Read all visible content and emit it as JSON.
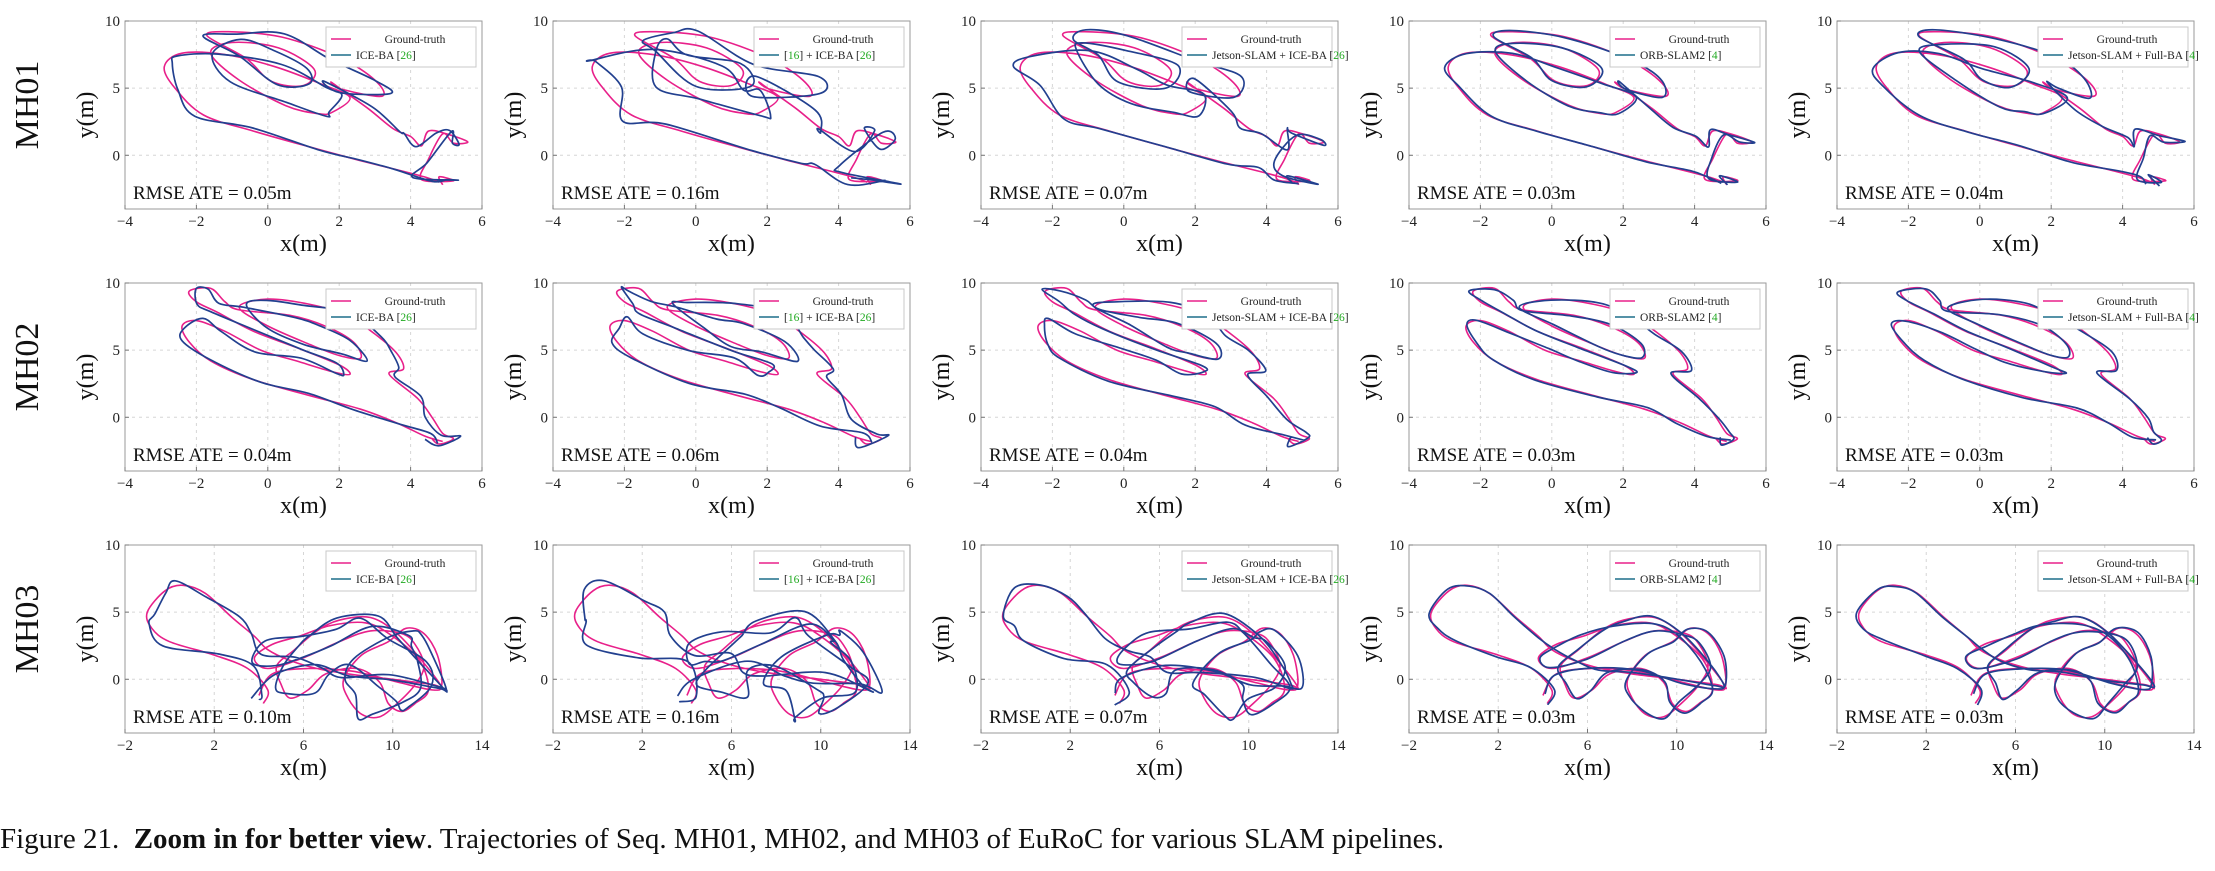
{
  "caption": {
    "prefix": "Figure 21.",
    "bold": "Zoom in for better view",
    "rest": ". Trajectories of Seq. MH01, MH02, and MH03 of EuRoC for various SLAM pipelines."
  },
  "colors": {
    "ground_truth": "#e8208a",
    "estimate": "#1d6f8a",
    "estimate_dark": "#22408f",
    "citation": "#22aa22"
  },
  "chart_data": [
    {
      "seq": "MH01",
      "method": "ICE-BA [26]",
      "legend": [
        "Ground-truth",
        "ICE-BA [26]"
      ],
      "rmse_text": "RMSE ATE = 0.05m",
      "type": "line",
      "xlabel": "x(m)",
      "ylabel": "y(m)",
      "xlim": [
        -4,
        6
      ],
      "ylim": [
        -4,
        10
      ],
      "xticks": [
        -4,
        -2,
        0,
        2,
        4,
        6
      ],
      "yticks": [
        0,
        5,
        10
      ],
      "grid": true,
      "legend_position": "top-right",
      "deviation": 0.25
    },
    {
      "seq": "MH01",
      "method": "[16] + ICE-BA [26]",
      "legend": [
        "Ground-truth",
        "[16] + ICE-BA [26]"
      ],
      "rmse_text": "RMSE ATE = 0.16m",
      "type": "line",
      "xlabel": "x(m)",
      "ylabel": "y(m)",
      "xlim": [
        -4,
        6
      ],
      "ylim": [
        -4,
        10
      ],
      "xticks": [
        -4,
        -2,
        0,
        2,
        4,
        6
      ],
      "yticks": [
        0,
        5,
        10
      ],
      "grid": true,
      "legend_position": "top-right",
      "deviation": 0.55
    },
    {
      "seq": "MH01",
      "method": "Jetson-SLAM + ICE-BA [26]",
      "legend": [
        "Ground-truth",
        "Jetson-SLAM  + ICE-BA [26]"
      ],
      "rmse_text": "RMSE ATE = 0.07m",
      "type": "line",
      "xlabel": "x(m)",
      "ylabel": "y(m)",
      "xlim": [
        -4,
        6
      ],
      "ylim": [
        -4,
        10
      ],
      "xticks": [
        -4,
        -2,
        0,
        2,
        4,
        6
      ],
      "yticks": [
        0,
        5,
        10
      ],
      "grid": true,
      "legend_position": "top-right",
      "deviation": 0.3
    },
    {
      "seq": "MH01",
      "method": "ORB-SLAM2 [4]",
      "legend": [
        "Ground-truth",
        "ORB-SLAM2 [4]"
      ],
      "rmse_text": "RMSE ATE = 0.03m",
      "type": "line",
      "xlabel": "x(m)",
      "ylabel": "y(m)",
      "xlim": [
        -4,
        6
      ],
      "ylim": [
        -4,
        10
      ],
      "xticks": [
        -4,
        -2,
        0,
        2,
        4,
        6
      ],
      "yticks": [
        0,
        5,
        10
      ],
      "grid": true,
      "legend_position": "top-right",
      "deviation": 0.1
    },
    {
      "seq": "MH01",
      "method": "Jetson-SLAM + Full-BA [4]",
      "legend": [
        "Ground-truth",
        "Jetson-SLAM  + Full-BA [4]"
      ],
      "rmse_text": "RMSE ATE = 0.04m",
      "type": "line",
      "xlabel": "x(m)",
      "ylabel": "y(m)",
      "xlim": [
        -4,
        6
      ],
      "ylim": [
        -4,
        10
      ],
      "xticks": [
        -4,
        -2,
        0,
        2,
        4,
        6
      ],
      "yticks": [
        0,
        5,
        10
      ],
      "grid": true,
      "legend_position": "top-right",
      "deviation": 0.15
    },
    {
      "seq": "MH02",
      "method": "ICE-BA [26]",
      "legend": [
        "Ground-truth",
        "ICE-BA [26]"
      ],
      "rmse_text": "RMSE ATE = 0.04m",
      "type": "line",
      "xlabel": "x(m)",
      "ylabel": "y(m)",
      "xlim": [
        -4,
        6
      ],
      "ylim": [
        -4,
        10
      ],
      "xticks": [
        -4,
        -2,
        0,
        2,
        4,
        6
      ],
      "yticks": [
        0,
        5,
        10
      ],
      "grid": true,
      "legend_position": "top-right",
      "deviation": 0.2
    },
    {
      "seq": "MH02",
      "method": "[16] + ICE-BA [26]",
      "legend": [
        "Ground-truth",
        "[16] + ICE-BA [26]"
      ],
      "rmse_text": "RMSE ATE = 0.06m",
      "type": "line",
      "xlabel": "x(m)",
      "ylabel": "y(m)",
      "xlim": [
        -4,
        6
      ],
      "ylim": [
        -4,
        10
      ],
      "xticks": [
        -4,
        -2,
        0,
        2,
        4,
        6
      ],
      "yticks": [
        0,
        5,
        10
      ],
      "grid": true,
      "legend_position": "top-right",
      "deviation": 0.28
    },
    {
      "seq": "MH02",
      "method": "Jetson-SLAM + ICE-BA [26]",
      "legend": [
        "Ground-truth",
        "Jetson-SLAM  + ICE-BA [26]"
      ],
      "rmse_text": "RMSE ATE = 0.04m",
      "type": "line",
      "xlabel": "x(m)",
      "ylabel": "y(m)",
      "xlim": [
        -4,
        6
      ],
      "ylim": [
        -4,
        10
      ],
      "xticks": [
        -4,
        -2,
        0,
        2,
        4,
        6
      ],
      "yticks": [
        0,
        5,
        10
      ],
      "grid": true,
      "legend_position": "top-right",
      "deviation": 0.2
    },
    {
      "seq": "MH02",
      "method": "ORB-SLAM2 [4]",
      "legend": [
        "Ground-truth",
        "ORB-SLAM2 [4]"
      ],
      "rmse_text": "RMSE ATE = 0.03m",
      "type": "line",
      "xlabel": "x(m)",
      "ylabel": "y(m)",
      "xlim": [
        -4,
        6
      ],
      "ylim": [
        -4,
        10
      ],
      "xticks": [
        -4,
        -2,
        0,
        2,
        4,
        6
      ],
      "yticks": [
        0,
        5,
        10
      ],
      "grid": true,
      "legend_position": "top-right",
      "deviation": 0.12
    },
    {
      "seq": "MH02",
      "method": "Jetson-SLAM + Full-BA [4]",
      "legend": [
        "Ground-truth",
        "Jetson-SLAM  + Full-BA [4]"
      ],
      "rmse_text": "RMSE ATE = 0.03m",
      "type": "line",
      "xlabel": "x(m)",
      "ylabel": "y(m)",
      "xlim": [
        -4,
        6
      ],
      "ylim": [
        -4,
        10
      ],
      "xticks": [
        -4,
        -2,
        0,
        2,
        4,
        6
      ],
      "yticks": [
        0,
        5,
        10
      ],
      "grid": true,
      "legend_position": "top-right",
      "deviation": 0.12
    },
    {
      "seq": "MH03",
      "method": "ICE-BA [26]",
      "legend": [
        "Ground-truth",
        "ICE-BA [26]"
      ],
      "rmse_text": "RMSE ATE = 0.10m",
      "type": "line",
      "xlabel": "x(m)",
      "ylabel": "y(m)",
      "xlim": [
        -2,
        14
      ],
      "ylim": [
        -4,
        10
      ],
      "xticks": [
        -2,
        2,
        6,
        10,
        14
      ],
      "yticks": [
        0,
        5,
        10
      ],
      "grid": true,
      "legend_position": "top-right",
      "deviation": 0.35
    },
    {
      "seq": "MH03",
      "method": "[16] + ICE-BA [26]",
      "legend": [
        "Ground-truth",
        "[16] + ICE-BA [26]"
      ],
      "rmse_text": "RMSE ATE = 0.16m",
      "type": "line",
      "xlabel": "x(m)",
      "ylabel": "y(m)",
      "xlim": [
        -2,
        14
      ],
      "ylim": [
        -4,
        10
      ],
      "xticks": [
        -2,
        2,
        6,
        10,
        14
      ],
      "yticks": [
        0,
        5,
        10
      ],
      "grid": true,
      "legend_position": "top-right",
      "deviation": 0.55
    },
    {
      "seq": "MH03",
      "method": "Jetson-SLAM + ICE-BA [26]",
      "legend": [
        "Ground-truth",
        "Jetson-SLAM  + ICE-BA [26]"
      ],
      "rmse_text": "RMSE ATE = 0.07m",
      "type": "line",
      "xlabel": "x(m)",
      "ylabel": "y(m)",
      "xlim": [
        -2,
        14
      ],
      "ylim": [
        -4,
        10
      ],
      "xticks": [
        -2,
        2,
        6,
        10,
        14
      ],
      "yticks": [
        0,
        5,
        10
      ],
      "grid": true,
      "legend_position": "top-right",
      "deviation": 0.3
    },
    {
      "seq": "MH03",
      "method": "ORB-SLAM2 [4]",
      "legend": [
        "Ground-truth",
        "ORB-SLAM2 [4]"
      ],
      "rmse_text": "RMSE ATE = 0.03m",
      "type": "line",
      "xlabel": "x(m)",
      "ylabel": "y(m)",
      "xlim": [
        -2,
        14
      ],
      "ylim": [
        -4,
        10
      ],
      "xticks": [
        -2,
        2,
        6,
        10,
        14
      ],
      "yticks": [
        0,
        5,
        10
      ],
      "grid": true,
      "legend_position": "top-right",
      "deviation": 0.12
    },
    {
      "seq": "MH03",
      "method": "Jetson-SLAM + Full-BA [4]",
      "legend": [
        "Ground-truth",
        "Jetson-SLAM  + Full-BA [4]"
      ],
      "rmse_text": "RMSE ATE = 0.03m",
      "type": "line",
      "xlabel": "x(m)",
      "ylabel": "y(m)",
      "xlim": [
        -2,
        14
      ],
      "ylim": [
        -4,
        10
      ],
      "xticks": [
        -2,
        2,
        6,
        10,
        14
      ],
      "yticks": [
        0,
        5,
        10
      ],
      "grid": true,
      "legend_position": "top-right",
      "deviation": 0.12
    }
  ],
  "ground_truth_paths": {
    "MH01": [
      [
        4.8,
        -2.0
      ],
      [
        4.5,
        -1.7
      ],
      [
        3.8,
        -1.2
      ],
      [
        2.6,
        -0.4
      ],
      [
        1.2,
        0.6
      ],
      [
        -0.4,
        1.8
      ],
      [
        -1.8,
        3.0
      ],
      [
        -2.6,
        5.0
      ],
      [
        -2.9,
        6.6
      ],
      [
        -2.4,
        7.6
      ],
      [
        -1.2,
        7.5
      ],
      [
        0.2,
        6.6
      ],
      [
        1.5,
        5.3
      ],
      [
        2.3,
        4.3
      ],
      [
        1.8,
        3.2
      ],
      [
        1.4,
        3.1
      ],
      [
        0.5,
        3.7
      ],
      [
        -0.8,
        5.6
      ],
      [
        -1.6,
        7.6
      ],
      [
        -1.0,
        8.4
      ],
      [
        0.3,
        8.0
      ],
      [
        1.3,
        6.4
      ],
      [
        1.0,
        5.2
      ],
      [
        0.1,
        5.5
      ],
      [
        -0.6,
        7.2
      ],
      [
        -1.7,
        8.9
      ],
      [
        -1.1,
        9.2
      ],
      [
        0.4,
        8.8
      ],
      [
        2.0,
        7.3
      ],
      [
        3.0,
        5.6
      ],
      [
        3.2,
        4.4
      ],
      [
        2.1,
        4.9
      ],
      [
        1.8,
        5.4
      ],
      [
        2.8,
        3.5
      ],
      [
        3.5,
        2.0
      ],
      [
        4.0,
        1.4
      ],
      [
        4.3,
        0.7
      ],
      [
        4.5,
        1.8
      ],
      [
        5.0,
        1.6
      ],
      [
        5.6,
        1.0
      ],
      [
        5.2,
        0.9
      ],
      [
        4.9,
        1.6
      ],
      [
        4.5,
        -0.3
      ],
      [
        4.3,
        -1.8
      ],
      [
        5.2,
        -1.9
      ],
      [
        4.8,
        -1.6
      ],
      [
        4.9,
        -2.2
      ]
    ],
    "MH02": [
      [
        4.9,
        -1.8
      ],
      [
        4.4,
        -1.4
      ],
      [
        3.6,
        -0.4
      ],
      [
        2.6,
        0.6
      ],
      [
        1.2,
        1.6
      ],
      [
        -0.4,
        2.8
      ],
      [
        -1.6,
        4.2
      ],
      [
        -2.2,
        5.6
      ],
      [
        -2.4,
        6.8
      ],
      [
        -2.0,
        7.2
      ],
      [
        -1.2,
        6.4
      ],
      [
        -0.2,
        5.0
      ],
      [
        0.8,
        4.2
      ],
      [
        1.8,
        3.4
      ],
      [
        2.3,
        3.2
      ],
      [
        2.0,
        3.9
      ],
      [
        0.8,
        5.2
      ],
      [
        -0.4,
        6.4
      ],
      [
        -1.4,
        7.8
      ],
      [
        -2.0,
        8.6
      ],
      [
        -2.2,
        9.4
      ],
      [
        -1.6,
        9.6
      ],
      [
        -1.2,
        8.6
      ],
      [
        -0.8,
        8.0
      ],
      [
        0.6,
        7.6
      ],
      [
        1.6,
        6.8
      ],
      [
        2.4,
        5.6
      ],
      [
        2.6,
        4.4
      ],
      [
        2.0,
        4.6
      ],
      [
        1.2,
        5.4
      ],
      [
        0.0,
        6.8
      ],
      [
        -0.8,
        8.2
      ],
      [
        0.0,
        8.8
      ],
      [
        1.2,
        8.4
      ],
      [
        2.2,
        7.6
      ],
      [
        3.0,
        6.2
      ],
      [
        3.6,
        4.8
      ],
      [
        3.8,
        3.6
      ],
      [
        3.4,
        3.2
      ],
      [
        4.2,
        1.4
      ],
      [
        4.6,
        0.0
      ],
      [
        4.9,
        -1.2
      ],
      [
        5.2,
        -1.6
      ],
      [
        4.8,
        -2.0
      ],
      [
        4.6,
        -1.6
      ]
    ],
    "MH03": [
      [
        4.2,
        -1.8
      ],
      [
        4.4,
        -0.8
      ],
      [
        3.5,
        0.8
      ],
      [
        2.0,
        1.8
      ],
      [
        0.0,
        2.8
      ],
      [
        -0.8,
        3.8
      ],
      [
        -1.0,
        5.0
      ],
      [
        -0.2,
        6.6
      ],
      [
        0.6,
        7.0
      ],
      [
        1.6,
        6.4
      ],
      [
        2.8,
        4.6
      ],
      [
        3.8,
        3.2
      ],
      [
        4.4,
        2.2
      ],
      [
        5.4,
        1.4
      ],
      [
        6.6,
        0.8
      ],
      [
        8.0,
        0.4
      ],
      [
        10.0,
        0.0
      ],
      [
        11.8,
        -0.4
      ],
      [
        12.2,
        -0.6
      ],
      [
        11.4,
        1.2
      ],
      [
        10.2,
        3.4
      ],
      [
        9.0,
        4.6
      ],
      [
        7.6,
        4.4
      ],
      [
        6.6,
        3.6
      ],
      [
        5.6,
        2.2
      ],
      [
        4.8,
        1.0
      ],
      [
        5.0,
        -0.4
      ],
      [
        5.4,
        -1.4
      ],
      [
        6.2,
        -0.8
      ],
      [
        7.0,
        0.4
      ],
      [
        8.4,
        0.8
      ],
      [
        9.4,
        -0.2
      ],
      [
        9.8,
        -1.8
      ],
      [
        10.4,
        -2.4
      ],
      [
        11.0,
        -1.8
      ],
      [
        11.6,
        -0.8
      ],
      [
        11.2,
        1.4
      ],
      [
        10.0,
        3.2
      ],
      [
        8.8,
        4.2
      ],
      [
        7.2,
        4.0
      ],
      [
        5.8,
        3.2
      ],
      [
        4.6,
        2.6
      ],
      [
        3.8,
        1.6
      ],
      [
        4.4,
        0.8
      ],
      [
        6.0,
        1.6
      ],
      [
        7.6,
        2.8
      ],
      [
        9.0,
        3.6
      ],
      [
        10.4,
        3.4
      ],
      [
        11.0,
        2.6
      ],
      [
        11.4,
        1.0
      ],
      [
        11.0,
        -0.4
      ],
      [
        10.2,
        -1.8
      ],
      [
        9.4,
        -2.8
      ],
      [
        8.6,
        -2.6
      ],
      [
        8.0,
        -1.4
      ],
      [
        7.8,
        0.0
      ],
      [
        8.6,
        1.8
      ],
      [
        9.8,
        2.8
      ],
      [
        10.6,
        3.8
      ],
      [
        11.4,
        3.4
      ],
      [
        12.0,
        1.8
      ],
      [
        12.2,
        -0.4
      ],
      [
        11.8,
        -0.8
      ],
      [
        10.2,
        -0.2
      ],
      [
        8.2,
        0.6
      ],
      [
        6.2,
        0.8
      ],
      [
        4.6,
        0.4
      ],
      [
        4.0,
        -1.2
      ]
    ]
  }
}
